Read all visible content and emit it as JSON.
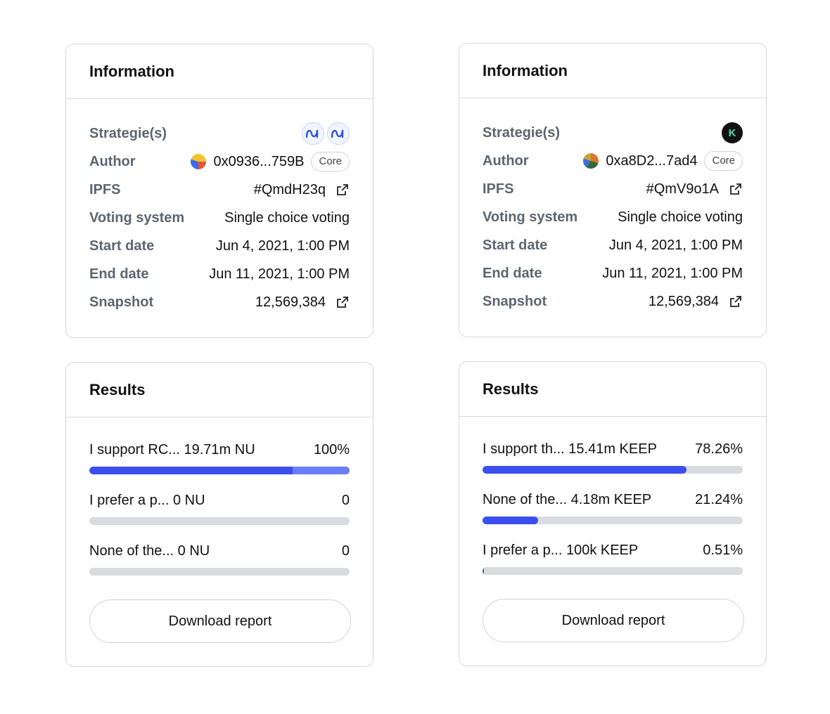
{
  "panels": [
    {
      "information": {
        "title": "Information",
        "strategies_label": "Strategie(s)",
        "strategy_icons": [
          "nu-icon",
          "nu-icon"
        ],
        "author_label": "Author",
        "author_value": "0x0936...759B",
        "author_badge": "Core",
        "ipfs_label": "IPFS",
        "ipfs_value": "#QmdH23q",
        "voting_label": "Voting system",
        "voting_value": "Single choice voting",
        "start_label": "Start date",
        "start_value": "Jun 4, 2021, 1:00 PM",
        "end_label": "End date",
        "end_value": "Jun 11, 2021, 1:00 PM",
        "snapshot_label": "Snapshot",
        "snapshot_value": "12,569,384"
      },
      "results": {
        "title": "Results",
        "items": [
          {
            "label": "I support RC... 19.71m NU",
            "value": "100%",
            "fraction": 1.0
          },
          {
            "label": "I prefer a p... 0 NU",
            "value": "0",
            "fraction": 0
          },
          {
            "label": "None of the... 0 NU",
            "value": "0",
            "fraction": 0
          }
        ],
        "download_label": "Download report"
      }
    },
    {
      "information": {
        "title": "Information",
        "strategies_label": "Strategie(s)",
        "strategy_icons": [
          "keep-icon"
        ],
        "keep_letter": "K",
        "author_label": "Author",
        "author_value": "0xa8D2...7ad4",
        "author_badge": "Core",
        "ipfs_label": "IPFS",
        "ipfs_value": "#QmV9o1A",
        "voting_label": "Voting system",
        "voting_value": "Single choice voting",
        "start_label": "Start date",
        "start_value": "Jun 4, 2021, 1:00 PM",
        "end_label": "End date",
        "end_value": "Jun 11, 2021, 1:00 PM",
        "snapshot_label": "Snapshot",
        "snapshot_value": "12,569,384"
      },
      "results": {
        "title": "Results",
        "items": [
          {
            "label": "I support th... 15.41m KEEP",
            "value": "78.26%",
            "fraction": 0.7826
          },
          {
            "label": "None of the... 4.18m KEEP",
            "value": "21.24%",
            "fraction": 0.2124
          },
          {
            "label": "I prefer a p... 100k KEEP",
            "value": "0.51%",
            "fraction": 0.0051
          }
        ],
        "download_label": "Download report"
      }
    }
  ],
  "colors": {
    "bar_fill": "#3b4ff0",
    "bar_track": "#d9dbdf",
    "label_gray": "#5e6470",
    "border": "#d7d9dd"
  }
}
